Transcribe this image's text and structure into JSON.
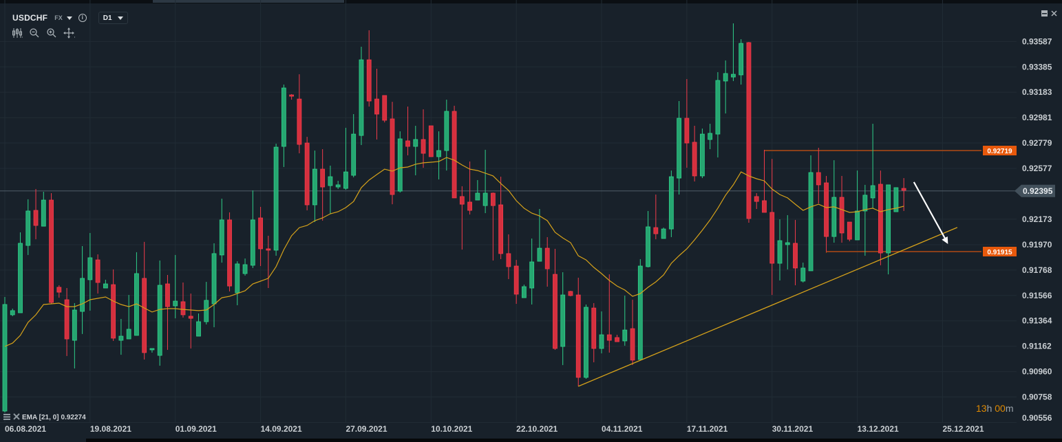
{
  "header": {
    "symbol": "USDCHF",
    "market": "FX",
    "timeframe": "D1",
    "info_icon": "i"
  },
  "toolbar": {
    "icons": [
      "candles-icon",
      "zoom-out-icon",
      "zoom-in-icon",
      "move-icon"
    ]
  },
  "window": {
    "minimize": "minimize-icon",
    "close": "close-icon"
  },
  "legend": {
    "indicator": "EMA [21, 0]",
    "value": "0.92274"
  },
  "countdown": {
    "hours": "13",
    "h": "h",
    "minutes": "00",
    "m": "m"
  },
  "colors": {
    "background": "#18212a",
    "grid": "#212c35",
    "up": "#26a671",
    "up_border": "#2fd08a",
    "down": "#d5303e",
    "down_border": "#f23b4b",
    "ema": "#d6a21a",
    "level_line": "#b14b14",
    "level_label": "#e8590c",
    "current_price": "#42505b",
    "trendline": "#d6a21a",
    "arrow": "#ffffff"
  },
  "chart_data": {
    "type": "candlestick",
    "title": "USDCHF D1",
    "xlabel": "",
    "ylabel": "",
    "ylim": [
      0.905,
      0.9391
    ],
    "grid": true,
    "y_ticks": [
      "0.93587",
      "0.93385",
      "0.93183",
      "0.92981",
      "0.92779",
      "0.92577",
      "0.92173",
      "0.91970",
      "0.91768",
      "0.91566",
      "0.91364",
      "0.91162",
      "0.90960",
      "0.90758",
      "0.90556"
    ],
    "current_price": "0.92395",
    "x_ticks": [
      {
        "label": "06.08.2021",
        "index": 1
      },
      {
        "label": "19.08.2021",
        "index": 12
      },
      {
        "label": "01.09.2021",
        "index": 23
      },
      {
        "label": "14.09.2021",
        "index": 34
      },
      {
        "label": "27.09.2021",
        "index": 45
      },
      {
        "label": "10.10.2021",
        "index": 56
      },
      {
        "label": "22.10.2021",
        "index": 67
      },
      {
        "label": "04.11.2021",
        "index": 78
      },
      {
        "label": "17.11.2021",
        "index": 89
      },
      {
        "label": "30.11.2021",
        "index": 100
      },
      {
        "label": "13.12.2021",
        "index": 111
      },
      {
        "label": "25.12.2021",
        "index": 122
      }
    ],
    "candle_fields": [
      "open",
      "high",
      "low",
      "close"
    ],
    "candles": [
      [
        0.90646,
        0.91554,
        0.90635,
        0.91494
      ],
      [
        0.91412,
        0.91461,
        0.91401,
        0.91445
      ],
      [
        0.91428,
        0.92068,
        0.91428,
        0.91981
      ],
      [
        0.91964,
        0.92331,
        0.91888,
        0.92238
      ],
      [
        0.92243,
        0.92413,
        0.92013,
        0.92123
      ],
      [
        0.92117,
        0.92391,
        0.92117,
        0.92325
      ],
      [
        0.92325,
        0.9238,
        0.91499,
        0.9151
      ],
      [
        0.91631,
        0.91647,
        0.91548,
        0.91592
      ],
      [
        0.91532,
        0.91625,
        0.91084,
        0.9122
      ],
      [
        0.91209,
        0.91505,
        0.90985,
        0.9145
      ],
      [
        0.91439,
        0.91959,
        0.91259,
        0.91702
      ],
      [
        0.91691,
        0.92063,
        0.91445,
        0.91866
      ],
      [
        0.91849,
        0.91893,
        0.91581,
        0.91669
      ],
      [
        0.91625,
        0.91691,
        0.91625,
        0.91658
      ],
      [
        0.91652,
        0.91773,
        0.91204,
        0.91226
      ],
      [
        0.91209,
        0.91379,
        0.91094,
        0.91242
      ],
      [
        0.9122,
        0.9157,
        0.9122,
        0.91297
      ],
      [
        0.91248,
        0.9191,
        0.91248,
        0.9174
      ],
      [
        0.91702,
        0.91992,
        0.91056,
        0.91111
      ],
      [
        0.91133,
        0.91144,
        0.91111,
        0.91144
      ],
      [
        0.91089,
        0.91844,
        0.91007,
        0.91647
      ],
      [
        0.91658,
        0.91729,
        0.91133,
        0.91477
      ],
      [
        0.91483,
        0.91888,
        0.91384,
        0.91521
      ],
      [
        0.91516,
        0.91669,
        0.9139,
        0.91412
      ],
      [
        0.91401,
        0.91581,
        0.91144,
        0.91384
      ],
      [
        0.91242,
        0.91423,
        0.91242,
        0.91357
      ],
      [
        0.91357,
        0.91674,
        0.91335,
        0.91527
      ],
      [
        0.91499,
        0.91981,
        0.91313,
        0.91899
      ],
      [
        0.91888,
        0.92336,
        0.91827,
        0.92167
      ],
      [
        0.92167,
        0.92227,
        0.91598,
        0.91641
      ],
      [
        0.91587,
        0.91838,
        0.91488,
        0.91817
      ],
      [
        0.9174,
        0.9186,
        0.91724,
        0.91811
      ],
      [
        0.91806,
        0.92402,
        0.91784,
        0.92167
      ],
      [
        0.92183,
        0.92271,
        0.918,
        0.91937
      ],
      [
        0.91937,
        0.92041,
        0.91625,
        0.91926
      ],
      [
        0.91926,
        0.92774,
        0.91882,
        0.92746
      ],
      [
        0.92752,
        0.93244,
        0.92588,
        0.93217
      ],
      [
        0.93162,
        0.93168,
        0.93124,
        0.93151
      ],
      [
        0.93129,
        0.93326,
        0.92697,
        0.92768
      ],
      [
        0.92779,
        0.92828,
        0.92243,
        0.92287
      ],
      [
        0.92287,
        0.92719,
        0.9215,
        0.92571
      ],
      [
        0.92571,
        0.9273,
        0.92161,
        0.92429
      ],
      [
        0.9244,
        0.92599,
        0.92216,
        0.92511
      ],
      [
        0.92429,
        0.92478,
        0.92413,
        0.92446
      ],
      [
        0.92418,
        0.929,
        0.92407,
        0.92549
      ],
      [
        0.92522,
        0.93009,
        0.92506,
        0.9285
      ],
      [
        0.92839,
        0.93545,
        0.92763,
        0.93441
      ],
      [
        0.93441,
        0.93676,
        0.93069,
        0.93113
      ],
      [
        0.93129,
        0.9337,
        0.92807,
        0.93009
      ],
      [
        0.93157,
        0.93157,
        0.92943,
        0.9296
      ],
      [
        0.92971,
        0.93107,
        0.92292,
        0.92369
      ],
      [
        0.92396,
        0.92872,
        0.92385,
        0.92812
      ],
      [
        0.92796,
        0.93069,
        0.92681,
        0.92752
      ],
      [
        0.92752,
        0.92916,
        0.92522,
        0.92807
      ],
      [
        0.92807,
        0.93047,
        0.92582,
        0.92697
      ],
      [
        0.92916,
        0.92916,
        0.9267,
        0.9267
      ],
      [
        0.9267,
        0.92872,
        0.92489,
        0.92719
      ],
      [
        0.92719,
        0.93124,
        0.9256,
        0.93031
      ],
      [
        0.93031,
        0.93075,
        0.92342,
        0.92342
      ],
      [
        0.92353,
        0.92435,
        0.91931,
        0.92292
      ],
      [
        0.92309,
        0.92632,
        0.9221,
        0.92243
      ],
      [
        0.92325,
        0.92484,
        0.92325,
        0.9238
      ],
      [
        0.92281,
        0.92725,
        0.92221,
        0.9238
      ],
      [
        0.9238,
        0.92385,
        0.91844,
        0.92281
      ],
      [
        0.92287,
        0.92511,
        0.91855,
        0.91899
      ],
      [
        0.91899,
        0.92052,
        0.91696,
        0.91795
      ],
      [
        0.918,
        0.91849,
        0.91499,
        0.91576
      ],
      [
        0.91548,
        0.91652,
        0.91548,
        0.91636
      ],
      [
        0.91625,
        0.92019,
        0.91494,
        0.91833
      ],
      [
        0.91838,
        0.92254,
        0.91838,
        0.91942
      ],
      [
        0.91942,
        0.9203,
        0.91636,
        0.91778
      ],
      [
        0.91734,
        0.91937,
        0.91133,
        0.91144
      ],
      [
        0.9116,
        0.91751,
        0.91012,
        0.9157
      ],
      [
        0.91598,
        0.91603,
        0.91559,
        0.91565
      ],
      [
        0.9157,
        0.91707,
        0.90843,
        0.90914
      ],
      [
        0.90914,
        0.91494,
        0.90903,
        0.91472
      ],
      [
        0.91466,
        0.91505,
        0.91034,
        0.91144
      ],
      [
        0.91144,
        0.91439,
        0.91105,
        0.91253
      ],
      [
        0.91253,
        0.91734,
        0.91111,
        0.91209
      ],
      [
        0.91231,
        0.91253,
        0.91198,
        0.91198
      ],
      [
        0.91204,
        0.91565,
        0.91166,
        0.91291
      ],
      [
        0.91302,
        0.91532,
        0.91012,
        0.91051
      ],
      [
        0.91056,
        0.91855,
        0.91056,
        0.918
      ],
      [
        0.91795,
        0.92238,
        0.91789,
        0.92112
      ],
      [
        0.92106,
        0.92369,
        0.92013,
        0.92057
      ],
      [
        0.92019,
        0.92106,
        0.92019,
        0.92095
      ],
      [
        0.92095,
        0.9256,
        0.9203,
        0.92511
      ],
      [
        0.925,
        0.93113,
        0.92369,
        0.92976
      ],
      [
        0.92976,
        0.93288,
        0.92582,
        0.92779
      ],
      [
        0.92785,
        0.92916,
        0.92473,
        0.92517
      ],
      [
        0.92517,
        0.92894,
        0.925,
        0.9285
      ],
      [
        0.92807,
        0.92932,
        0.9273,
        0.92856
      ],
      [
        0.9285,
        0.93343,
        0.92664,
        0.93277
      ],
      [
        0.93272,
        0.93436,
        0.93014,
        0.93332
      ],
      [
        0.93304,
        0.93731,
        0.93272,
        0.93326
      ],
      [
        0.93321,
        0.93605,
        0.93244,
        0.93572
      ],
      [
        0.93578,
        0.93583,
        0.92145,
        0.92178
      ],
      [
        0.92353,
        0.9238,
        0.92254,
        0.92314
      ],
      [
        0.9232,
        0.92725,
        0.92227,
        0.92227
      ],
      [
        0.92227,
        0.92653,
        0.9157,
        0.91822
      ],
      [
        0.91822,
        0.92172,
        0.91685,
        0.92002
      ],
      [
        0.9197,
        0.92205,
        0.91773,
        0.91986
      ],
      [
        0.91981,
        0.92167,
        0.91647,
        0.91784
      ],
      [
        0.9168,
        0.91827,
        0.91669,
        0.91784
      ],
      [
        0.91762,
        0.92681,
        0.91762,
        0.92544
      ],
      [
        0.92544,
        0.92741,
        0.92298,
        0.92446
      ],
      [
        0.92462,
        0.92517,
        0.91915,
        0.92035
      ],
      [
        0.92035,
        0.92642,
        0.91986,
        0.92347
      ],
      [
        0.92347,
        0.92517,
        0.91986,
        0.92063
      ],
      [
        0.9215,
        0.9215,
        0.91997,
        0.92013
      ],
      [
        0.92008,
        0.9256,
        0.92008,
        0.92238
      ],
      [
        0.92238,
        0.92446,
        0.91882,
        0.92364
      ],
      [
        0.92342,
        0.92932,
        0.9226,
        0.9244
      ],
      [
        0.92451,
        0.9256,
        0.91806,
        0.91904
      ],
      [
        0.91904,
        0.92446,
        0.91734,
        0.92446
      ],
      [
        0.92232,
        0.92424,
        0.92232,
        0.92424
      ],
      [
        0.92418,
        0.925,
        0.92238,
        0.92402
      ]
    ],
    "ema": {
      "name": "EMA [21, 0]",
      "values": [
        0.9116,
        0.91187,
        0.91248,
        0.91352,
        0.91412,
        0.91494,
        0.91499,
        0.91505,
        0.91477,
        0.91477,
        0.91499,
        0.91532,
        0.91543,
        0.91554,
        0.91521,
        0.91494,
        0.91477,
        0.91499,
        0.91466,
        0.91434,
        0.91455,
        0.91461,
        0.91461,
        0.91455,
        0.9145,
        0.91445,
        0.9145,
        0.91494,
        0.91548,
        0.91559,
        0.91581,
        0.91603,
        0.91658,
        0.9168,
        0.91702,
        0.91795,
        0.91931,
        0.92041,
        0.92106,
        0.92123,
        0.92161,
        0.92183,
        0.92216,
        0.92232,
        0.92265,
        0.92314,
        0.92424,
        0.92484,
        0.92528,
        0.92571,
        0.92555,
        0.92582,
        0.92588,
        0.9261,
        0.92621,
        0.92626,
        0.92632,
        0.92664,
        0.92642,
        0.92604,
        0.92571,
        0.9256,
        0.92539,
        0.92517,
        0.92457,
        0.92402,
        0.9232,
        0.9226,
        0.92221,
        0.92199,
        0.92161,
        0.92068,
        0.92024,
        0.91986,
        0.91882,
        0.91849,
        0.91789,
        0.9174,
        0.91685,
        0.91641,
        0.91609,
        0.91559,
        0.91581,
        0.91631,
        0.91674,
        0.91729,
        0.91822,
        0.91882,
        0.91937,
        0.92008,
        0.92085,
        0.92167,
        0.9226,
        0.92364,
        0.92446,
        0.92549,
        0.92517,
        0.92495,
        0.92478,
        0.92413,
        0.92369,
        0.92342,
        0.92292,
        0.92243,
        0.92271,
        0.92292,
        0.92265,
        0.92271,
        0.92249,
        0.92227,
        0.92232,
        0.92249,
        0.9226,
        0.92232,
        0.92249,
        0.9226,
        0.92276
      ]
    },
    "levels": [
      {
        "label": "0.92719",
        "price": 0.92719,
        "from_index": 99
      },
      {
        "label": "0.91915",
        "price": 0.91915,
        "from_index": 107
      }
    ],
    "trendline": {
      "from": {
        "index": 75,
        "price": 0.90843
      },
      "to": {
        "index": 123.9,
        "price": 0.92107
      }
    },
    "arrow": {
      "from": {
        "index": 118.3,
        "price": 0.92468
      },
      "to": {
        "index": 122.7,
        "price": 0.91975
      }
    }
  }
}
